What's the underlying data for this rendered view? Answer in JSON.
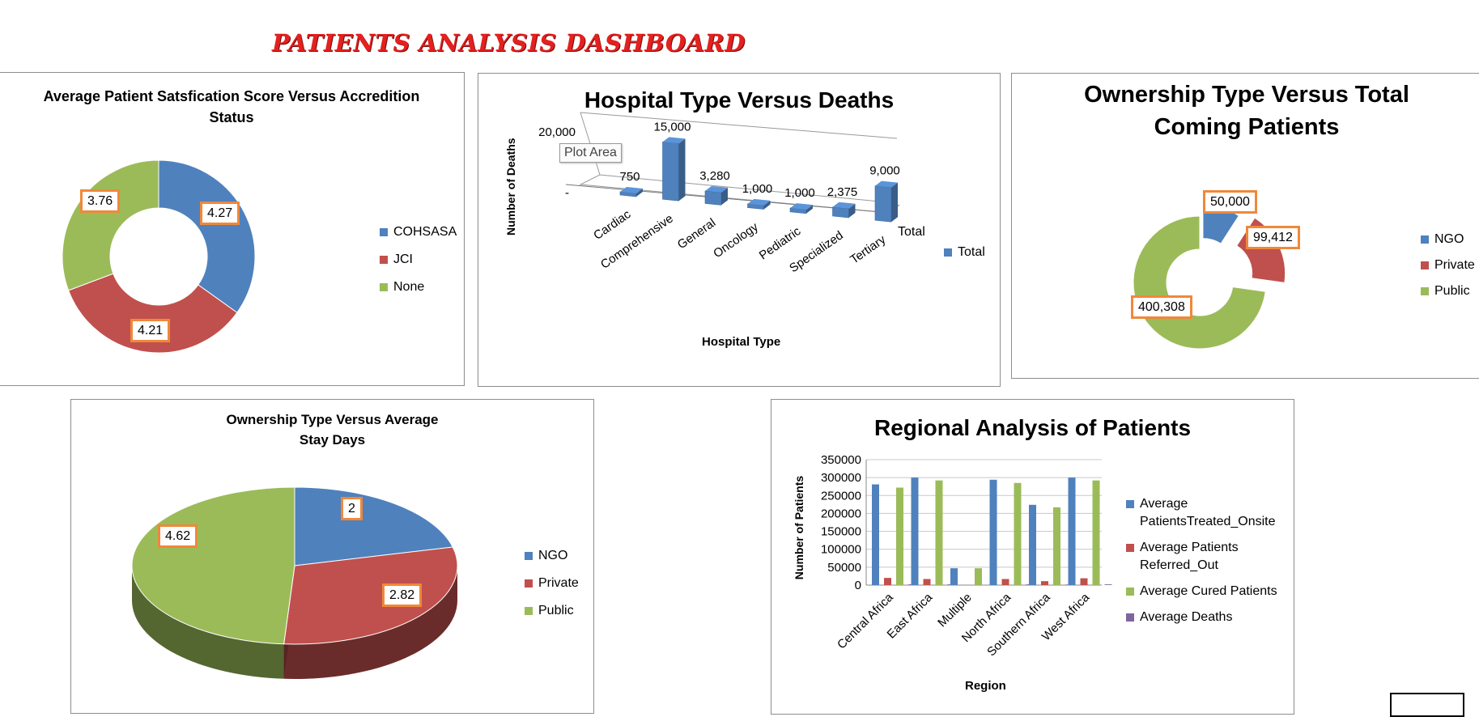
{
  "dashboard": {
    "title": "PATIENTS ANALYSIS DASHBOARD"
  },
  "colors": {
    "blue": "#4f81bd",
    "red": "#c0504d",
    "green": "#9bbb59",
    "purple": "#8064a2",
    "highlight": "#f0883a",
    "title": "#e3211f"
  },
  "chart_data": [
    {
      "type": "pie",
      "variant": "doughnut",
      "title": [
        "Average Patient Satsfication Score Versus Accredition",
        "Status"
      ],
      "categories": [
        "COHSASA",
        "JCI",
        "None"
      ],
      "values": [
        4.27,
        4.21,
        3.76
      ],
      "labels": [
        "4.27",
        "4.21",
        "3.76"
      ],
      "legend": "right"
    },
    {
      "type": "bar",
      "variant": "3d-column",
      "title": "Hospital Type Versus Deaths",
      "xlabel": "Hospital Type",
      "ylabel": "Number of Deaths",
      "categories": [
        "Cardiac",
        "Comprehensive",
        "General",
        "Oncology",
        "Pediatric",
        "Specialized",
        "Tertiary"
      ],
      "series": [
        {
          "name": "Total",
          "values": [
            750,
            15000,
            3280,
            1000,
            1000,
            2375,
            9000
          ]
        }
      ],
      "labels": [
        "750",
        "15,000",
        "3,280",
        "1,000",
        "1,000",
        "2,375",
        "9,000"
      ],
      "yticks": [
        "-",
        "20,000"
      ],
      "ylim": [
        0,
        20000
      ],
      "depth_label": "Total",
      "tooltip": "Plot Area",
      "legend": "right"
    },
    {
      "type": "pie",
      "variant": "exploded-doughnut",
      "title": [
        "Ownership Type Versus Total",
        "Coming Patients"
      ],
      "categories": [
        "NGO",
        "Private",
        "Public"
      ],
      "values": [
        50000,
        99412,
        400308
      ],
      "labels": [
        "50,000",
        "99,412",
        "400,308"
      ],
      "legend": "right"
    },
    {
      "type": "pie",
      "variant": "3d-pie",
      "title": [
        "Ownership Type Versus Average",
        "Stay Days"
      ],
      "categories": [
        "NGO",
        "Private",
        "Public"
      ],
      "values": [
        2,
        2.82,
        4.62
      ],
      "labels": [
        "2",
        "2.82",
        "4.62"
      ],
      "legend": "right"
    },
    {
      "type": "bar",
      "variant": "clustered-column",
      "title": "Regional Analysis of Patients",
      "xlabel": "Region",
      "ylabel": "Number of Patients",
      "categories": [
        "Central Africa",
        "East Africa",
        "Multiple",
        "North Africa",
        "Southern Africa",
        "West Africa"
      ],
      "series": [
        {
          "name": "Average PatientsTreated_Onsite",
          "legend_lines": [
            "Average",
            "PatientsTreated_Onsite"
          ],
          "values": [
            281000,
            300000,
            47000,
            294000,
            224000,
            300000
          ]
        },
        {
          "name": "Average Patients Referred_Out",
          "legend_lines": [
            "Average Patients",
            "Referred_Out"
          ],
          "values": [
            20000,
            17000,
            0,
            17000,
            11000,
            19000
          ]
        },
        {
          "name": "Average Cured Patients",
          "legend_lines": [
            "Average Cured Patients"
          ],
          "values": [
            272000,
            292000,
            47000,
            285000,
            217000,
            292000
          ]
        },
        {
          "name": "Average Deaths",
          "legend_lines": [
            "Average Deaths"
          ],
          "values": [
            2000,
            2000,
            0,
            2000,
            1500,
            2000
          ]
        }
      ],
      "yticks": [
        "0",
        "50000",
        "100000",
        "150000",
        "200000",
        "250000",
        "300000",
        "350000"
      ],
      "ylim": [
        0,
        350000
      ],
      "grid": true,
      "legend": "right"
    }
  ]
}
